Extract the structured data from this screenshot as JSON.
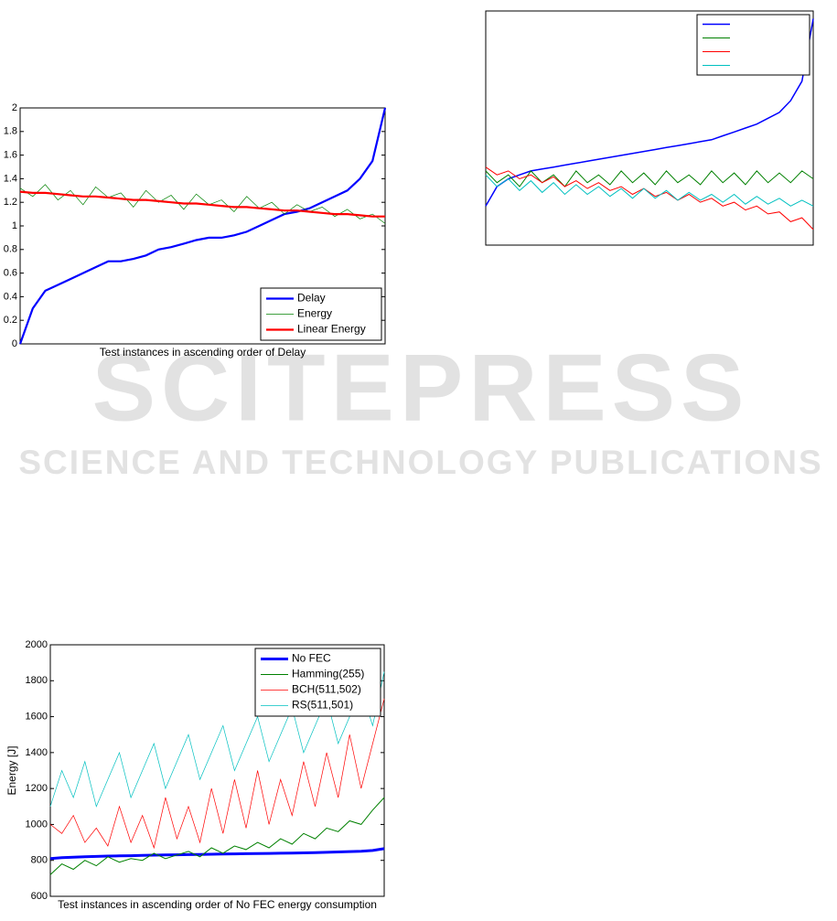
{
  "chart_data": [
    {
      "type": "line",
      "xlabel": "Test instances in ascending order of Delay",
      "ylim": [
        0,
        2
      ],
      "yticks": [
        0,
        0.2,
        0.4,
        0.6,
        0.8,
        1,
        1.2,
        1.4,
        1.6,
        1.8,
        2
      ],
      "legend": "lower right",
      "series": [
        {
          "name": "Delay",
          "color": "#0000ff",
          "values": [
            0,
            0.3,
            0.45,
            0.5,
            0.55,
            0.6,
            0.65,
            0.7,
            0.7,
            0.72,
            0.75,
            0.8,
            0.82,
            0.85,
            0.88,
            0.9,
            0.9,
            0.92,
            0.95,
            1.0,
            1.05,
            1.1,
            1.12,
            1.15,
            1.2,
            1.25,
            1.3,
            1.4,
            1.55,
            2.0
          ]
        },
        {
          "name": "Energy",
          "color": "#008000",
          "values": [
            1.32,
            1.25,
            1.35,
            1.22,
            1.3,
            1.18,
            1.33,
            1.24,
            1.28,
            1.16,
            1.3,
            1.2,
            1.26,
            1.14,
            1.27,
            1.18,
            1.22,
            1.12,
            1.25,
            1.15,
            1.2,
            1.1,
            1.18,
            1.12,
            1.16,
            1.08,
            1.14,
            1.06,
            1.1,
            1.02
          ]
        },
        {
          "name": "Linear Energy",
          "color": "#ff0000",
          "values": [
            1.29,
            1.28,
            1.28,
            1.27,
            1.26,
            1.25,
            1.25,
            1.24,
            1.23,
            1.22,
            1.22,
            1.21,
            1.2,
            1.19,
            1.19,
            1.18,
            1.17,
            1.16,
            1.16,
            1.15,
            1.14,
            1.13,
            1.13,
            1.12,
            1.11,
            1.1,
            1.1,
            1.09,
            1.08,
            1.08
          ]
        }
      ]
    },
    {
      "type": "line",
      "ylim": [
        0,
        6
      ],
      "legend": "upper right",
      "series": [
        {
          "color": "#0000ff",
          "values": [
            1.0,
            1.5,
            1.7,
            1.8,
            1.9,
            1.95,
            2.0,
            2.05,
            2.1,
            2.15,
            2.2,
            2.25,
            2.3,
            2.35,
            2.4,
            2.45,
            2.5,
            2.55,
            2.6,
            2.65,
            2.7,
            2.8,
            2.9,
            3.0,
            3.1,
            3.25,
            3.4,
            3.7,
            4.2,
            5.8
          ]
        },
        {
          "color": "#008000",
          "values": [
            1.9,
            1.6,
            1.8,
            1.5,
            1.9,
            1.6,
            1.8,
            1.5,
            1.9,
            1.6,
            1.8,
            1.55,
            1.9,
            1.6,
            1.85,
            1.55,
            1.9,
            1.6,
            1.8,
            1.55,
            1.9,
            1.6,
            1.85,
            1.55,
            1.9,
            1.6,
            1.85,
            1.6,
            1.9,
            1.7
          ]
        },
        {
          "color": "#ff0000",
          "values": [
            2.0,
            1.8,
            1.9,
            1.7,
            1.8,
            1.6,
            1.75,
            1.5,
            1.65,
            1.45,
            1.6,
            1.4,
            1.5,
            1.3,
            1.45,
            1.25,
            1.35,
            1.15,
            1.3,
            1.1,
            1.2,
            1.0,
            1.1,
            0.9,
            1.0,
            0.8,
            0.85,
            0.6,
            0.7,
            0.4
          ]
        },
        {
          "color": "#00c0c0",
          "values": [
            1.8,
            1.5,
            1.7,
            1.4,
            1.65,
            1.35,
            1.6,
            1.3,
            1.55,
            1.3,
            1.5,
            1.25,
            1.45,
            1.2,
            1.45,
            1.2,
            1.4,
            1.15,
            1.35,
            1.15,
            1.3,
            1.1,
            1.3,
            1.05,
            1.25,
            1.05,
            1.2,
            1.0,
            1.15,
            1.0
          ]
        }
      ]
    },
    {
      "type": "line",
      "xlabel": "Test instances in ascending order of No FEC energy consumption",
      "ylabel": "Energy [J]",
      "ylim": [
        600,
        2000
      ],
      "yticks": [
        600,
        800,
        1000,
        1200,
        1400,
        1600,
        1800,
        2000
      ],
      "legend": "upper right",
      "series": [
        {
          "name": "No FEC",
          "color": "#0000ff",
          "values": [
            810,
            815,
            818,
            820,
            822,
            824,
            825,
            826,
            828,
            829,
            830,
            831,
            832,
            833,
            834,
            835,
            836,
            837,
            838,
            839,
            840,
            841,
            842,
            843,
            845,
            847,
            849,
            851,
            855,
            865
          ]
        },
        {
          "name": "Hamming(255)",
          "color": "#008000",
          "values": [
            720,
            780,
            750,
            800,
            770,
            820,
            790,
            810,
            800,
            840,
            810,
            830,
            850,
            820,
            870,
            840,
            880,
            860,
            900,
            870,
            920,
            890,
            950,
            920,
            980,
            960,
            1020,
            1000,
            1080,
            1150
          ]
        },
        {
          "name": "BCH(511,502)",
          "color": "#ff0000",
          "values": [
            1000,
            950,
            1050,
            900,
            980,
            880,
            1100,
            900,
            1050,
            870,
            1150,
            920,
            1100,
            900,
            1200,
            950,
            1250,
            980,
            1300,
            1000,
            1250,
            1050,
            1350,
            1100,
            1400,
            1150,
            1500,
            1200,
            1450,
            1700
          ]
        },
        {
          "name": "RS(511,501)",
          "color": "#00c0c0",
          "values": [
            1100,
            1300,
            1150,
            1350,
            1100,
            1250,
            1400,
            1150,
            1300,
            1450,
            1200,
            1350,
            1500,
            1250,
            1400,
            1550,
            1300,
            1450,
            1600,
            1350,
            1500,
            1650,
            1400,
            1550,
            1700,
            1450,
            1600,
            1750,
            1550,
            1850
          ]
        }
      ]
    }
  ],
  "watermark": {
    "title": "SCITEPRESS",
    "subtitle": "SCIENCE AND TECHNOLOGY PUBLICATIONS"
  }
}
